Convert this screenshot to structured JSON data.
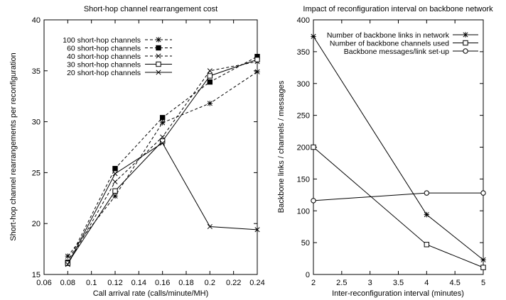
{
  "chart_data": [
    {
      "type": "line",
      "title": "Short-hop channel rearrangement cost",
      "xlabel": "Call arrival rate (calls/minute/MH)",
      "ylabel": "Short-hop channel rearrangements per reconfiguration",
      "xlim": [
        0.06,
        0.24
      ],
      "ylim": [
        15,
        40
      ],
      "xticks": [
        "0.06",
        "0.08",
        "0.1",
        "0.12",
        "0.14",
        "0.16",
        "0.18",
        "0.2",
        "0.22",
        "0.24"
      ],
      "yticks": [
        "15",
        "20",
        "25",
        "30",
        "35",
        "40"
      ],
      "grid": false,
      "legend_position": "top-left",
      "x": [
        0.08,
        0.12,
        0.16,
        0.2,
        0.24
      ],
      "series": [
        {
          "name": "100 short-hop channels",
          "marker": "star",
          "dash": "dashed",
          "values": [
            16.8,
            22.7,
            29.9,
            31.8,
            34.9
          ]
        },
        {
          "name": "60 short-hop channels",
          "marker": "filled-square",
          "dash": "dashed",
          "values": [
            16.2,
            25.4,
            30.4,
            33.9,
            36.4
          ]
        },
        {
          "name": "40 short-hop channels",
          "marker": "x",
          "dash": "dashed",
          "values": [
            16.0,
            24.1,
            28.5,
            35.0,
            35.9
          ]
        },
        {
          "name": "30 short-hop channels",
          "marker": "open-square",
          "dash": "solid",
          "values": [
            16.1,
            23.2,
            28.1,
            34.5,
            36.1
          ]
        },
        {
          "name": "20 short-hop channels",
          "marker": "x",
          "dash": "solid",
          "values": [
            16.0,
            24.9,
            27.9,
            19.7,
            19.4
          ]
        }
      ]
    },
    {
      "type": "line",
      "title": "Impact of reconfiguration interval on backbone network",
      "xlabel": "Inter-reconfiguration interval (minutes)",
      "ylabel": "Backbone links / channels / messages",
      "xlim": [
        2,
        5
      ],
      "ylim": [
        0,
        400
      ],
      "xticks": [
        "2",
        "2.5",
        "3",
        "3.5",
        "4",
        "4.5",
        "5"
      ],
      "yticks": [
        "0",
        "50",
        "100",
        "150",
        "200",
        "250",
        "300",
        "350",
        "400"
      ],
      "grid": false,
      "legend_position": "top-right",
      "x": [
        2,
        4,
        5
      ],
      "series": [
        {
          "name": "Number of backbone links in network",
          "marker": "star",
          "dash": "solid",
          "values": [
            374,
            94,
            23
          ]
        },
        {
          "name": "Number of backbone channels used",
          "marker": "open-square",
          "dash": "solid",
          "values": [
            200,
            47,
            11
          ]
        },
        {
          "name": "Backbone messages/link set-up",
          "marker": "open-circle",
          "dash": "solid",
          "values": [
            116,
            128,
            128
          ]
        }
      ]
    }
  ]
}
